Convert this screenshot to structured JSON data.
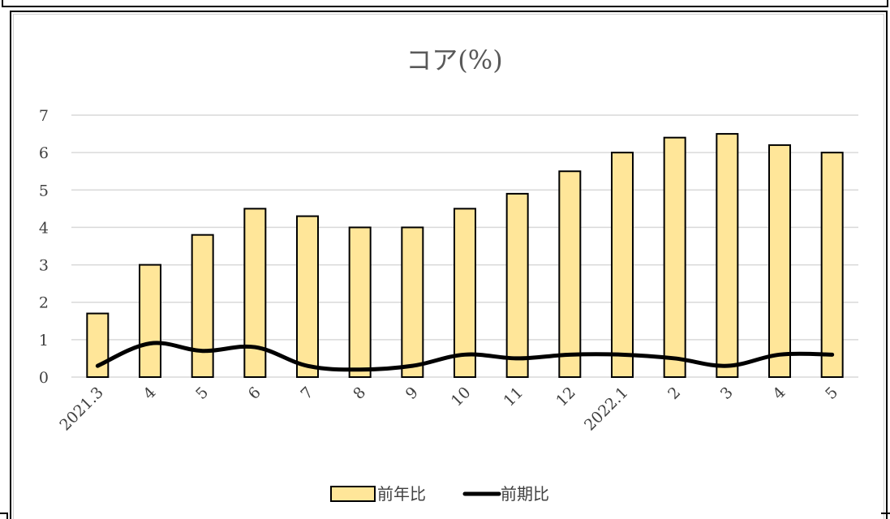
{
  "chart_data": {
    "type": "bar",
    "title": "コア(%)",
    "categories": [
      "2021.3",
      "4",
      "5",
      "6",
      "7",
      "8",
      "9",
      "10",
      "11",
      "12",
      "2022.1",
      "2",
      "3",
      "4",
      "5"
    ],
    "series": [
      {
        "name": "前年比",
        "type": "bar",
        "values": [
          1.7,
          3.0,
          3.8,
          4.5,
          4.3,
          4.0,
          4.0,
          4.5,
          4.9,
          5.5,
          6.0,
          6.4,
          6.5,
          6.2,
          6.0
        ]
      },
      {
        "name": "前期比",
        "type": "line",
        "values": [
          0.3,
          0.9,
          0.7,
          0.8,
          0.3,
          0.2,
          0.3,
          0.6,
          0.5,
          0.6,
          0.6,
          0.5,
          0.3,
          0.6,
          0.6
        ]
      }
    ],
    "ylim": [
      0,
      7
    ],
    "yticks": [
      "0",
      "1",
      "2",
      "3",
      "4",
      "5",
      "6",
      "7"
    ],
    "grid": true,
    "legend": "bottom",
    "colors": {
      "bar_fill": "#FFE699",
      "bar_stroke": "#000000",
      "line": "#000000",
      "grid": "#D9D9D9"
    }
  }
}
